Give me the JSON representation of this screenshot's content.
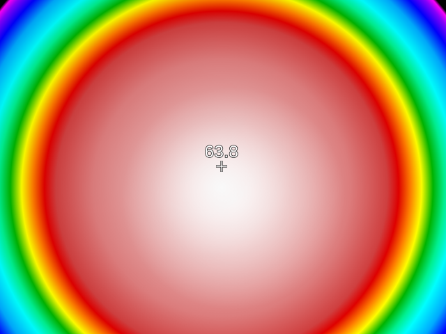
{
  "viewer": {
    "spot_temperature": "63.8",
    "palette": "rainbow-high-contrast",
    "palette_colors": [
      "#000000",
      "#ff00ff",
      "#7a00ff",
      "#0000ff",
      "#00a8ff",
      "#00ffff",
      "#00ff80",
      "#00a000",
      "#ffff00",
      "#ff8000",
      "#ff0000",
      "#d45454",
      "#e79b9b",
      "#ffffff"
    ],
    "marker_icon": "crosshair-icon"
  }
}
